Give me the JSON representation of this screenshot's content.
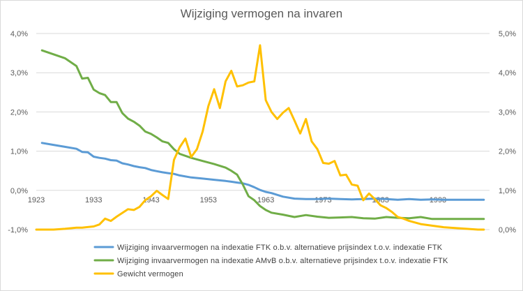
{
  "chart_data": {
    "type": "line",
    "title": "Wijziging vermogen na invaren",
    "x_ticks": [
      "1923",
      "1933",
      "1943",
      "1953",
      "1963",
      "1973",
      "1983",
      "1993"
    ],
    "x_range": [
      1923,
      2002
    ],
    "y_left": {
      "range": [
        -1.0,
        4.0
      ],
      "ticks": [
        "-1,0%",
        "0,0%",
        "1,0%",
        "2,0%",
        "3,0%",
        "4,0%"
      ]
    },
    "y_right": {
      "range": [
        0.0,
        5.0
      ],
      "ticks": [
        "0,0%",
        "1,0%",
        "2,0%",
        "3,0%",
        "4,0%",
        "5,0%"
      ]
    },
    "grid": true,
    "legend_position": "bottom",
    "series": [
      {
        "name": "Wijziging invaarvermogen na indexatie FTK o.b.v. alternatieve prijsindex t.o.v. indexatie FTK",
        "axis": "left",
        "color": "#5b9bd5",
        "x": [
          1924,
          1926,
          1928,
          1930,
          1931,
          1932,
          1933,
          1934,
          1935,
          1936,
          1937,
          1938,
          1939,
          1940,
          1941,
          1942,
          1943,
          1944,
          1945,
          1946,
          1947,
          1948,
          1950,
          1952,
          1954,
          1956,
          1957,
          1958,
          1959,
          1960,
          1961,
          1962,
          1963,
          1964,
          1966,
          1968,
          1970,
          1972,
          1974,
          1976,
          1978,
          1980,
          1982,
          1984,
          1986,
          1988,
          1990,
          1992,
          1994,
          1996,
          1998,
          2001
        ],
        "y": [
          1.21,
          1.16,
          1.11,
          1.06,
          0.98,
          0.97,
          0.86,
          0.83,
          0.81,
          0.77,
          0.76,
          0.69,
          0.66,
          0.62,
          0.59,
          0.57,
          0.52,
          0.49,
          0.46,
          0.44,
          0.42,
          0.38,
          0.33,
          0.3,
          0.27,
          0.24,
          0.22,
          0.2,
          0.18,
          0.14,
          0.08,
          0.01,
          -0.04,
          -0.07,
          -0.16,
          -0.21,
          -0.22,
          -0.22,
          -0.21,
          -0.22,
          -0.23,
          -0.22,
          -0.21,
          -0.22,
          -0.24,
          -0.22,
          -0.24,
          -0.23,
          -0.24,
          -0.24,
          -0.24,
          -0.24
        ]
      },
      {
        "name": "Wijziging invaarvermogen na indexatie AMvB o.b.v. alternatieve prijsindex t.o.v. indexatie FTK",
        "axis": "left",
        "color": "#70ad47",
        "x": [
          1924,
          1926,
          1928,
          1930,
          1931,
          1932,
          1933,
          1934,
          1935,
          1936,
          1937,
          1938,
          1939,
          1940,
          1941,
          1942,
          1943,
          1944,
          1945,
          1946,
          1947,
          1948,
          1950,
          1952,
          1954,
          1956,
          1957,
          1958,
          1959,
          1960,
          1961,
          1962,
          1963,
          1964,
          1966,
          1968,
          1970,
          1972,
          1974,
          1976,
          1978,
          1980,
          1982,
          1984,
          1986,
          1988,
          1990,
          1992,
          1994,
          1996,
          1998,
          2001
        ],
        "y": [
          3.57,
          3.47,
          3.37,
          3.17,
          2.85,
          2.87,
          2.57,
          2.48,
          2.43,
          2.25,
          2.25,
          1.97,
          1.83,
          1.75,
          1.65,
          1.5,
          1.44,
          1.35,
          1.25,
          1.21,
          1.05,
          0.93,
          0.83,
          0.75,
          0.67,
          0.58,
          0.5,
          0.4,
          0.15,
          -0.15,
          -0.25,
          -0.4,
          -0.5,
          -0.57,
          -0.62,
          -0.68,
          -0.63,
          -0.67,
          -0.7,
          -0.69,
          -0.68,
          -0.71,
          -0.72,
          -0.68,
          -0.7,
          -0.71,
          -0.68,
          -0.73,
          -0.73,
          -0.73,
          -0.73,
          -0.73
        ]
      },
      {
        "name": "Gewicht vermogen",
        "axis": "right",
        "color": "#ffc000",
        "x": [
          1923,
          1925,
          1926,
          1928,
          1930,
          1931,
          1933,
          1934,
          1935,
          1936,
          1937,
          1939,
          1940,
          1941,
          1942,
          1943,
          1944,
          1945,
          1946,
          1947,
          1948,
          1949,
          1950,
          1951,
          1952,
          1953,
          1954,
          1955,
          1956,
          1957,
          1958,
          1959,
          1960,
          1961,
          1962,
          1963,
          1964,
          1965,
          1966,
          1967,
          1968,
          1969,
          1970,
          1971,
          1972,
          1973,
          1974,
          1975,
          1976,
          1977,
          1978,
          1979,
          1980,
          1981,
          1982,
          1983,
          1984,
          1985,
          1986,
          1987,
          1988,
          1990,
          1992,
          1994,
          1996,
          1998,
          2000,
          2001
        ],
        "y": [
          0.0,
          0.0,
          0.0,
          0.02,
          0.05,
          0.05,
          0.08,
          0.13,
          0.28,
          0.22,
          0.33,
          0.52,
          0.5,
          0.58,
          0.75,
          0.85,
          0.99,
          0.88,
          0.78,
          1.78,
          2.1,
          2.32,
          1.85,
          2.05,
          2.5,
          3.15,
          3.58,
          3.1,
          3.78,
          4.05,
          3.65,
          3.68,
          3.75,
          3.78,
          4.7,
          3.3,
          3.0,
          2.82,
          2.98,
          3.1,
          2.78,
          2.45,
          2.82,
          2.25,
          2.05,
          1.7,
          1.68,
          1.75,
          1.38,
          1.4,
          1.15,
          1.12,
          0.75,
          0.92,
          0.78,
          0.62,
          0.55,
          0.45,
          0.32,
          0.28,
          0.22,
          0.14,
          0.1,
          0.06,
          0.04,
          0.02,
          0.0,
          0.0
        ]
      }
    ]
  }
}
